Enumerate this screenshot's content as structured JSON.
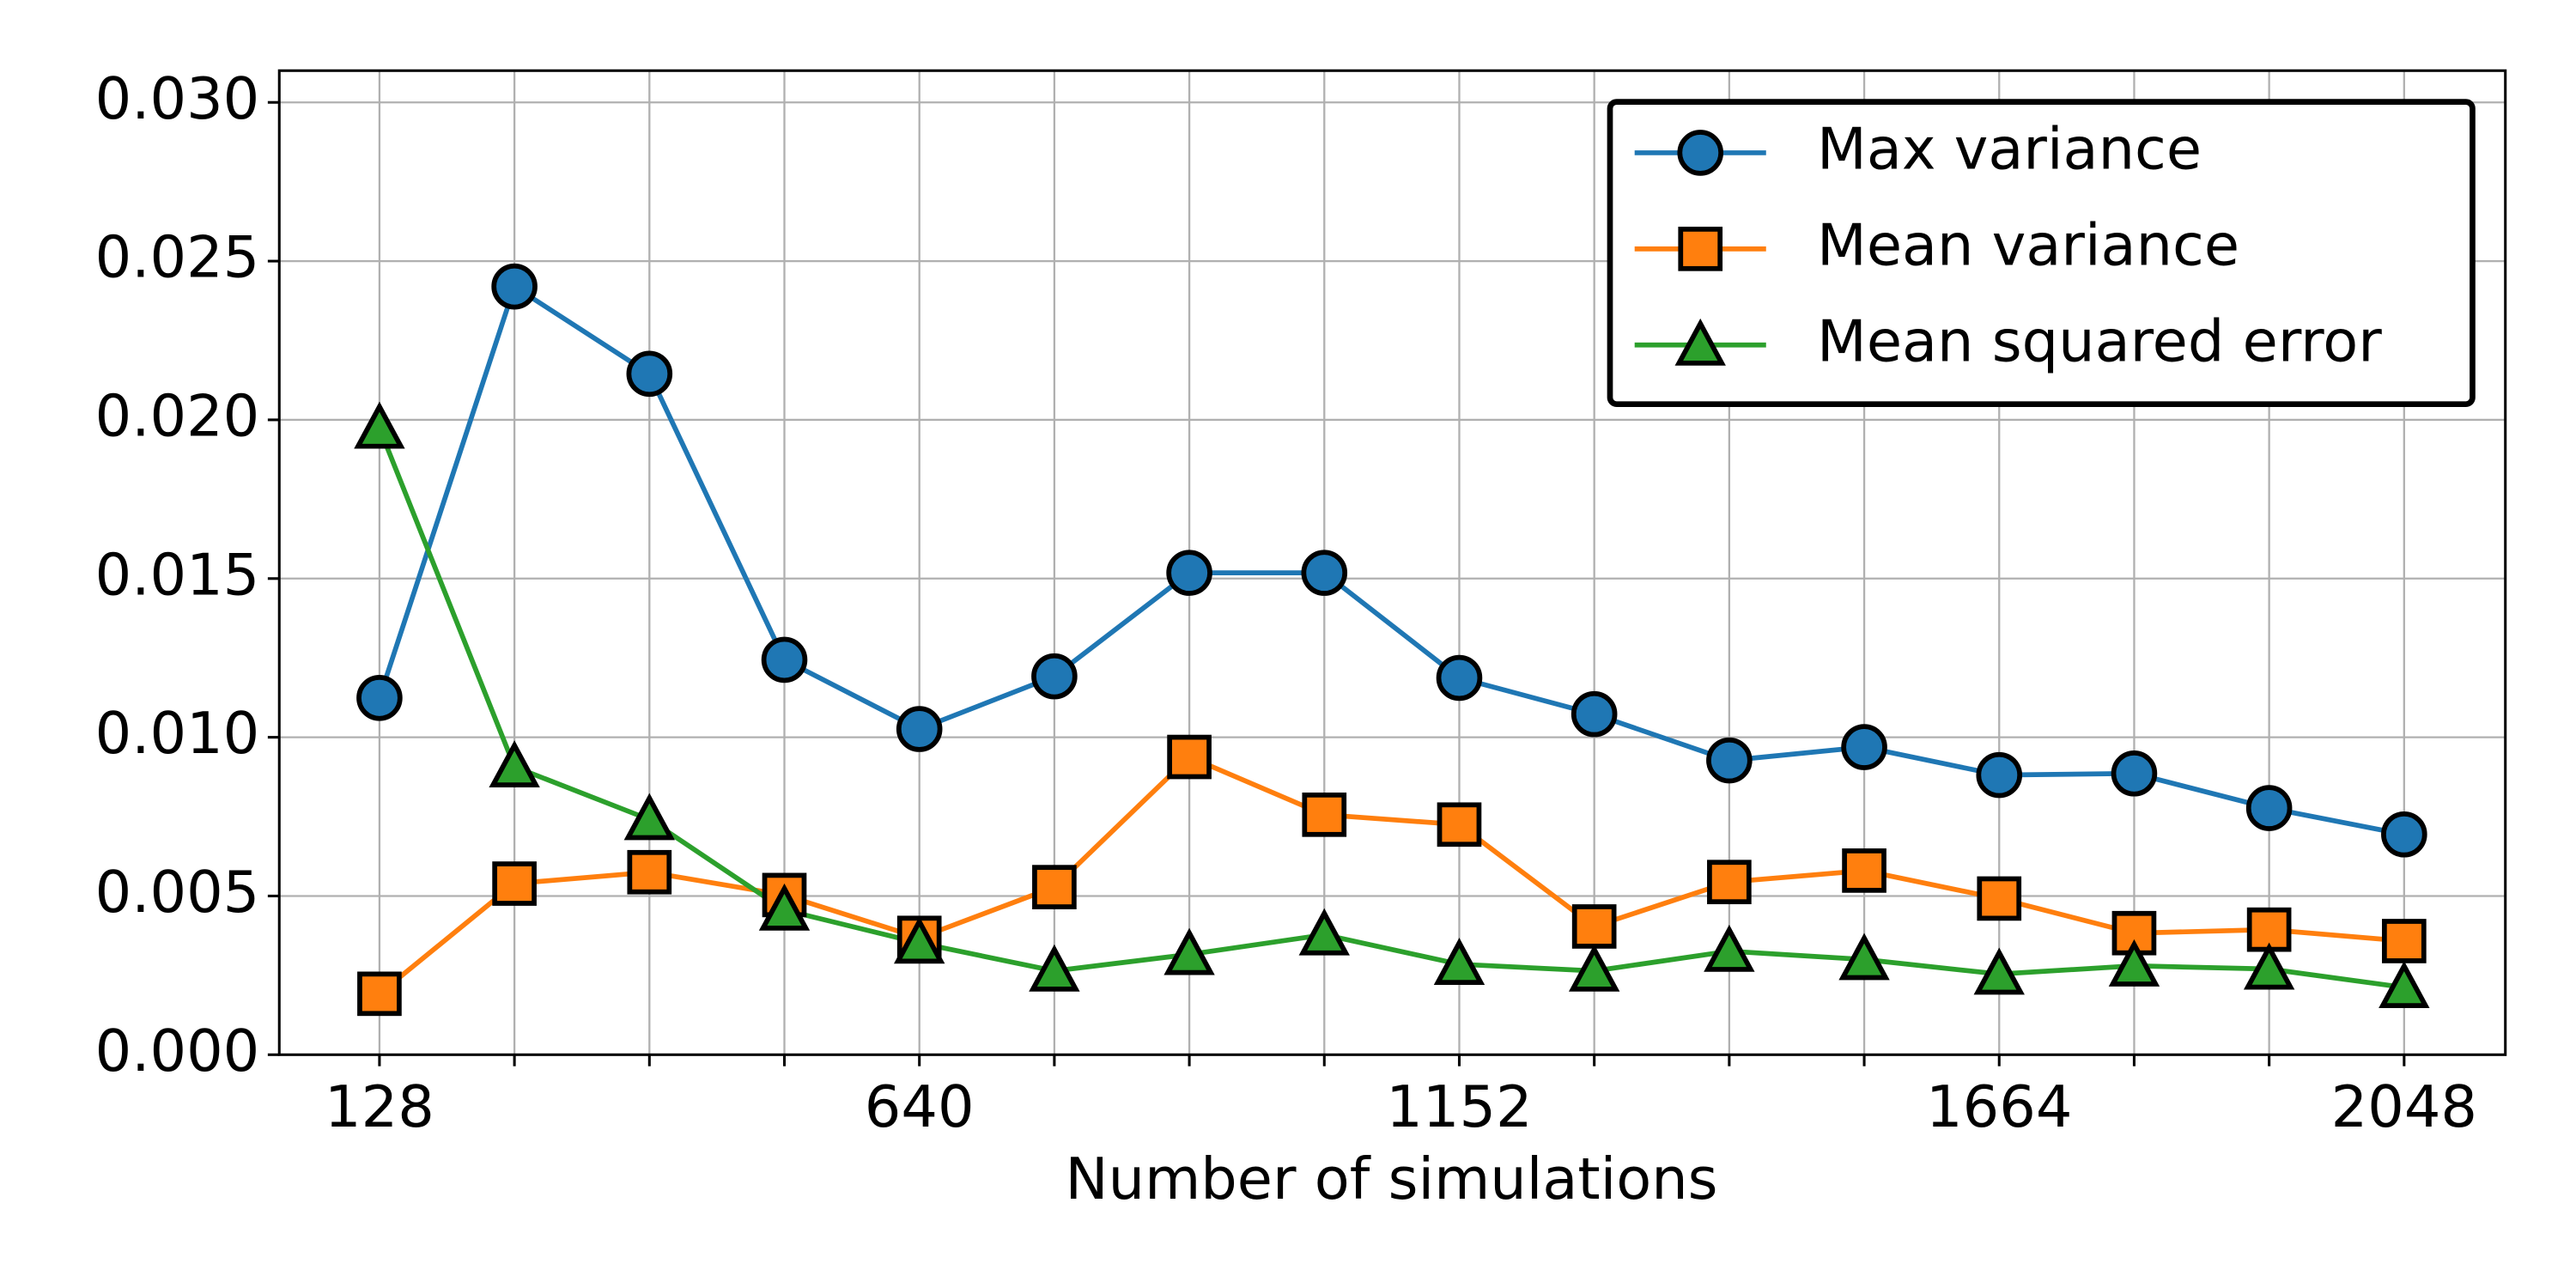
{
  "chart_data": {
    "type": "line",
    "xlabel": "Number of simulations",
    "x": [
      128,
      256,
      384,
      512,
      640,
      768,
      896,
      1024,
      1152,
      1280,
      1408,
      1536,
      1664,
      1792,
      1920,
      2048
    ],
    "series": [
      {
        "name": "Max variance",
        "color": "#1f77b4",
        "marker": "circle",
        "values": [
          0.01124,
          0.0242,
          0.02145,
          0.01244,
          0.01026,
          0.01192,
          0.01518,
          0.01518,
          0.01187,
          0.01073,
          0.00927,
          0.00969,
          0.00881,
          0.00886,
          0.00777,
          0.00694
        ]
      },
      {
        "name": "Mean variance",
        "color": "#ff7f0e",
        "marker": "square",
        "values": [
          0.00192,
          0.00539,
          0.00575,
          0.00503,
          0.00368,
          0.00528,
          0.00938,
          0.00756,
          0.00725,
          0.00404,
          0.00544,
          0.0058,
          0.00492,
          0.00383,
          0.00394,
          0.00358
        ]
      },
      {
        "name": "Mean squared error",
        "color": "#2ca02c",
        "marker": "triangle",
        "values": [
          0.01974,
          0.00907,
          0.00741,
          0.00456,
          0.00352,
          0.00264,
          0.00316,
          0.00378,
          0.00285,
          0.00264,
          0.00326,
          0.003,
          0.00254,
          0.0028,
          0.0027,
          0.00212
        ]
      }
    ],
    "xlim": [
      33,
      2144
    ],
    "xticks": [
      128,
      640,
      1152,
      1664,
      2048
    ],
    "xticks_minor": [
      256,
      384,
      512,
      768,
      896,
      1024,
      1280,
      1408,
      1536,
      1792,
      1920
    ],
    "ylim": [
      0,
      0.031
    ],
    "yticks": [
      {
        "value": 0,
        "label": "0.000"
      },
      {
        "value": 0.005,
        "label": "0.005"
      },
      {
        "value": 0.01,
        "label": "0.010"
      },
      {
        "value": 0.015,
        "label": "0.015"
      },
      {
        "value": 0.02,
        "label": "0.020"
      },
      {
        "value": 0.025,
        "label": "0.025"
      },
      {
        "value": 0.03,
        "label": "0.030"
      }
    ],
    "grid": true,
    "legend": "upper right"
  }
}
